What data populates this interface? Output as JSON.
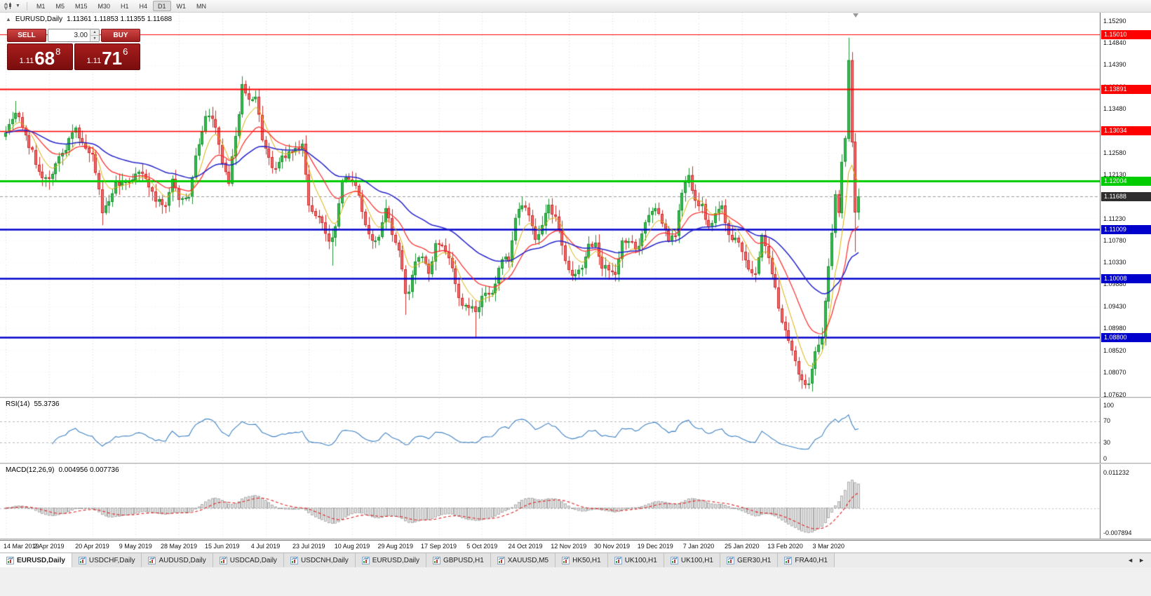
{
  "toolbar": {
    "timeframes": [
      "M1",
      "M5",
      "M15",
      "M30",
      "H1",
      "H4",
      "D1",
      "W1",
      "MN"
    ],
    "active_timeframe": "D1"
  },
  "chart_header": {
    "symbol": "EURUSD,Daily",
    "ohlc": "1.11361 1.11853 1.11355 1.11688"
  },
  "one_click": {
    "sell_label": "SELL",
    "buy_label": "BUY",
    "spread_value": "3.00",
    "sell_price": {
      "small": "1.11",
      "big": "68",
      "sup": "8"
    },
    "buy_price": {
      "small": "1.11",
      "big": "71",
      "sup": "6"
    }
  },
  "price_axis": {
    "ticks": [
      "1.15290",
      "1.14840",
      "1.14390",
      "1.13930",
      "1.13480",
      "1.12580",
      "1.12130",
      "1.11230",
      "1.10780",
      "1.10330",
      "1.09880",
      "1.09430",
      "1.08980",
      "1.08520",
      "1.08070",
      "1.07620"
    ]
  },
  "rsi_axis": [
    "100",
    "70",
    "30",
    "0"
  ],
  "time_axis": [
    "14 Mar 2019",
    "2 Apr 2019",
    "20 Apr 2019",
    "9 May 2019",
    "28 May 2019",
    "15 Jun 2019",
    "4 Jul 2019",
    "23 Jul 2019",
    "10 Aug 2019",
    "29 Aug 2019",
    "17 Sep 2019",
    "5 Oct 2019",
    "24 Oct 2019",
    "12 Nov 2019",
    "30 Nov 2019",
    "19 Dec 2019",
    "7 Jan 2020",
    "25 Jan 2020",
    "13 Feb 2020",
    "3 Mar 2020"
  ],
  "tabs": [
    "EURUSD,Daily",
    "USDCHF,Daily",
    "AUDUSD,Daily",
    "USDCAD,Daily",
    "USDCNH,Daily",
    "EURUSD,Daily",
    "GBPUSD,H1",
    "XAUUSD,M5",
    "HK50,H1",
    "UK100,H1",
    "UK100,H1",
    "GER30,H1",
    "FRA40,H1"
  ],
  "active_tab_index": 0,
  "tab_scroll": {
    "left": "◄",
    "right": "►"
  },
  "chart_data": {
    "type": "candlestick",
    "title": "EURUSD,Daily",
    "bars": 257,
    "y_range": [
      1.0762,
      1.1529
    ],
    "x_tick_every_bars": 13,
    "close_anchors": [
      [
        0,
        1.13
      ],
      [
        3,
        1.134
      ],
      [
        6,
        1.1295
      ],
      [
        10,
        1.122
      ],
      [
        13,
        1.1205
      ],
      [
        17,
        1.1258
      ],
      [
        21,
        1.131
      ],
      [
        24,
        1.1268
      ],
      [
        26,
        1.1255
      ],
      [
        29,
        1.1135
      ],
      [
        30,
        1.115
      ],
      [
        33,
        1.1198
      ],
      [
        36,
        1.12
      ],
      [
        39,
        1.1216
      ],
      [
        42,
        1.1205
      ],
      [
        45,
        1.1158
      ],
      [
        48,
        1.115
      ],
      [
        50,
        1.1205
      ],
      [
        52,
        1.1162
      ],
      [
        55,
        1.1168
      ],
      [
        57,
        1.1253
      ],
      [
        60,
        1.1334
      ],
      [
        62,
        1.1328
      ],
      [
        64,
        1.1275
      ],
      [
        66,
        1.1219
      ],
      [
        67,
        1.1195
      ],
      [
        69,
        1.1293
      ],
      [
        71,
        1.1399
      ],
      [
        73,
        1.1368
      ],
      [
        75,
        1.1373
      ],
      [
        77,
        1.1285
      ],
      [
        80,
        1.1227
      ],
      [
        83,
        1.1253
      ],
      [
        86,
        1.126
      ],
      [
        89,
        1.1277
      ],
      [
        91,
        1.1151
      ],
      [
        94,
        1.1128
      ],
      [
        97,
        1.1076
      ],
      [
        98,
        1.1085
      ],
      [
        99,
        1.1108
      ],
      [
        101,
        1.12
      ],
      [
        104,
        1.12
      ],
      [
        106,
        1.1171
      ],
      [
        108,
        1.111
      ],
      [
        110,
        1.1078
      ],
      [
        112,
        1.1086
      ],
      [
        114,
        1.1145
      ],
      [
        116,
        1.109
      ],
      [
        118,
        1.1058
      ],
      [
        120,
        1.0969
      ],
      [
        121,
        1.0973
      ],
      [
        123,
        1.1035
      ],
      [
        125,
        1.1045
      ],
      [
        127,
        1.101
      ],
      [
        129,
        1.1073
      ],
      [
        131,
        1.1068
      ],
      [
        133,
        1.1042
      ],
      [
        135,
        1.099
      ],
      [
        137,
        1.0945
      ],
      [
        139,
        1.094
      ],
      [
        141,
        1.0932
      ],
      [
        143,
        1.0965
      ],
      [
        145,
        1.097
      ],
      [
        147,
        1.099
      ],
      [
        149,
        1.104
      ],
      [
        151,
        1.1035
      ],
      [
        153,
        1.1125
      ],
      [
        155,
        1.115
      ],
      [
        157,
        1.113
      ],
      [
        159,
        1.108
      ],
      [
        161,
        1.111
      ],
      [
        163,
        1.1152
      ],
      [
        165,
        1.1128
      ],
      [
        167,
        1.1068
      ],
      [
        169,
        1.1018
      ],
      [
        171,
        1.101
      ],
      [
        173,
        1.1022
      ],
      [
        175,
        1.1072
      ],
      [
        177,
        1.1074
      ],
      [
        179,
        1.1021
      ],
      [
        181,
        1.1017
      ],
      [
        183,
        1.1009
      ],
      [
        185,
        1.1078
      ],
      [
        187,
        1.1077
      ],
      [
        189,
        1.106
      ],
      [
        191,
        1.1093
      ],
      [
        193,
        1.1131
      ],
      [
        195,
        1.1145
      ],
      [
        197,
        1.1113
      ],
      [
        199,
        1.1078
      ],
      [
        201,
        1.1088
      ],
      [
        203,
        1.1176
      ],
      [
        205,
        1.1213
      ],
      [
        207,
        1.116
      ],
      [
        209,
        1.1153
      ],
      [
        211,
        1.1106
      ],
      [
        213,
        1.1134
      ],
      [
        215,
        1.115
      ],
      [
        217,
        1.109
      ],
      [
        219,
        1.1084
      ],
      [
        221,
        1.1055
      ],
      [
        223,
        1.1019
      ],
      [
        225,
        1.101
      ],
      [
        227,
        1.109
      ],
      [
        229,
        1.1043
      ],
      [
        231,
        1.0982
      ],
      [
        233,
        1.0911
      ],
      [
        235,
        1.0873
      ],
      [
        237,
        1.0831
      ],
      [
        239,
        1.0792
      ],
      [
        241,
        1.0785
      ],
      [
        243,
        1.0851
      ],
      [
        245,
        1.0881
      ],
      [
        247,
        1.1026
      ],
      [
        249,
        1.1173
      ],
      [
        250,
        1.1135
      ],
      [
        251,
        1.124
      ],
      [
        252,
        1.1288
      ],
      [
        253,
        1.1449
      ],
      [
        254,
        1.1281
      ],
      [
        255,
        1.1136
      ],
      [
        256,
        1.11688
      ]
    ],
    "wick_overrides": {
      "3": {
        "h": 1.1365
      },
      "13": {
        "l": 1.1183
      },
      "29": {
        "l": 1.111
      },
      "71": {
        "h": 1.1412
      },
      "98": {
        "l": 1.1027
      },
      "120": {
        "l": 1.0926
      },
      "141": {
        "l": 1.0879
      },
      "241": {
        "l": 1.0778
      },
      "253": {
        "h": 1.1495
      },
      "255": {
        "l": 1.1055
      },
      "256": {
        "h": 1.11853,
        "l": 1.11355
      }
    },
    "h_lines": [
      {
        "price": 1.1501,
        "label": "1.15010",
        "color": "#ff0000",
        "width": 1
      },
      {
        "price": 1.13891,
        "label": "1.13891",
        "color": "#ff0000",
        "width": 2
      },
      {
        "price": 1.13034,
        "label": "1.13034",
        "color": "#ff0000",
        "width": 1.5
      },
      {
        "price": 1.12004,
        "label": "1.12004",
        "color": "#00cc00",
        "width": 3
      },
      {
        "price": 1.11009,
        "label": "1.11009",
        "color": "#0000cc",
        "width": 2.5
      },
      {
        "price": 1.10008,
        "label": "1.10008",
        "color": "#0000cc",
        "width": 2.5
      },
      {
        "price": 1.088,
        "label": "1.08800",
        "color": "#0000cc",
        "width": 2.5
      }
    ],
    "current_price": {
      "value": 1.11688,
      "label": "1.11688",
      "badge_color": "#2e2e2e"
    },
    "moving_averages": [
      {
        "period": 7,
        "type": "ema",
        "color": "#d8ae00",
        "width": 1
      },
      {
        "period": 18,
        "type": "ema",
        "color": "#ff2626",
        "width": 1.2
      },
      {
        "period": 45,
        "type": "ema",
        "color": "#2222cc",
        "width": 1.5
      }
    ],
    "candle_up": {
      "fill": "#33bf4e",
      "stroke": "#1d8f33"
    },
    "candle_down": {
      "fill": "#f16a6a",
      "stroke": "#cf2b2b"
    },
    "rsi": {
      "period": 14,
      "label": "RSI(14)",
      "current": "55.3736",
      "levels": [
        70,
        30
      ],
      "line_color": "#3e82c4"
    },
    "macd": {
      "fast": 12,
      "slow": 26,
      "signal": 9,
      "label": "MACD(12,26,9)",
      "current_values": "0.004956 0.007736",
      "scale_max": 0.011232,
      "scale_min": -0.007894,
      "scale_max_label": "0.011232",
      "scale_min_label": "-0.007894",
      "histogram_fill": "#e4e4e4",
      "histogram_stroke": "#9c9c9c",
      "signal_color": "#e02020"
    }
  }
}
